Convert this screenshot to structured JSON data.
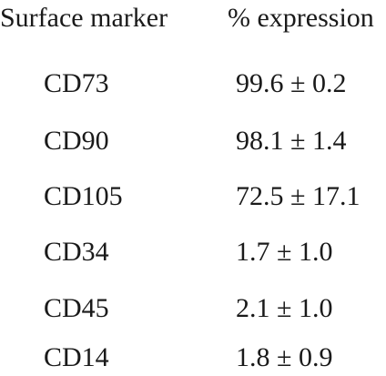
{
  "table": {
    "headers": [
      "Surface marker",
      "% expression"
    ],
    "rows": [
      [
        "CD73",
        "99.6 ± 0.2"
      ],
      [
        "CD90",
        "98.1 ± 1.4"
      ],
      [
        "CD105",
        "72.5 ± 17.1"
      ],
      [
        "CD34",
        "1.7 ± 1.0"
      ],
      [
        "CD45",
        "2.1 ± 1.0"
      ],
      [
        "CD14",
        "1.8 ± 0.9"
      ]
    ]
  }
}
